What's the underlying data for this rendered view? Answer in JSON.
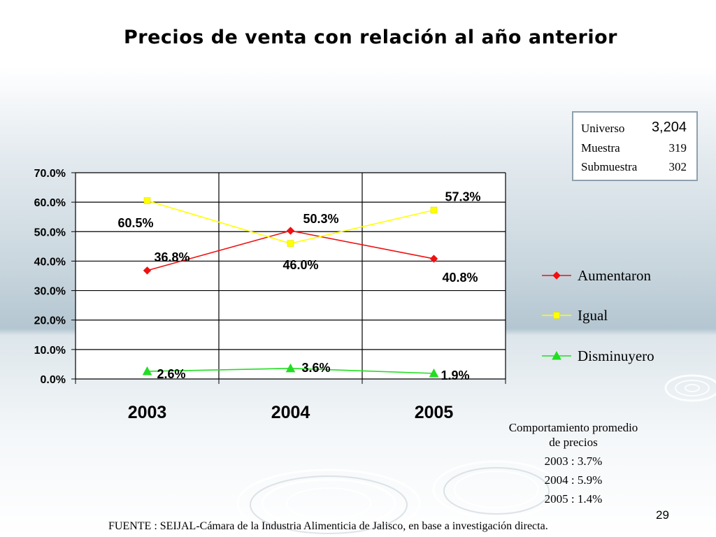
{
  "slide": {
    "title": "Precios de venta con relación al año anterior",
    "page_number": "29",
    "source": "FUENTE : SEIJAL-Cámara de la Industria Alimenticia de Jalisco,  en base a investigación directa."
  },
  "universe_box": {
    "rows": [
      {
        "label": "Universo",
        "value": "3,204"
      },
      {
        "label": "Muestra",
        "value": "319"
      },
      {
        "label": "Submuestra",
        "value": "302"
      }
    ]
  },
  "behavior_note": {
    "lines": [
      "Comportamiento promedio",
      "de precios",
      "2003 : 3.7%",
      "2004 : 5.9%",
      "2005 : 1.4%"
    ]
  },
  "chart_data": {
    "type": "line",
    "title": "Precios de venta con relación al año anterior",
    "categories": [
      "2003",
      "2004",
      "2005"
    ],
    "ylim": [
      0,
      70
    ],
    "y_ticks": [
      "0.0%",
      "10.0%",
      "20.0%",
      "30.0%",
      "40.0%",
      "50.0%",
      "60.0%",
      "70.0%"
    ],
    "grid": true,
    "legend_position": "right",
    "series": [
      {
        "name": "Aumentaron",
        "values": [
          36.8,
          50.3,
          40.8
        ],
        "labels": [
          "36.8%",
          "50.3%",
          "40.8%"
        ],
        "color": "#ee1111",
        "marker": "diamond"
      },
      {
        "name": "Igual",
        "values": [
          60.5,
          46.0,
          57.3
        ],
        "labels": [
          "60.5%",
          "46.0%",
          "57.3%"
        ],
        "color": "#ffff00",
        "marker": "square"
      },
      {
        "name": "Disminuyero",
        "values": [
          2.6,
          3.6,
          1.9
        ],
        "labels": [
          "2.6%",
          "3.6%",
          "1.9%"
        ],
        "color": "#22dd22",
        "marker": "triangle"
      }
    ]
  }
}
